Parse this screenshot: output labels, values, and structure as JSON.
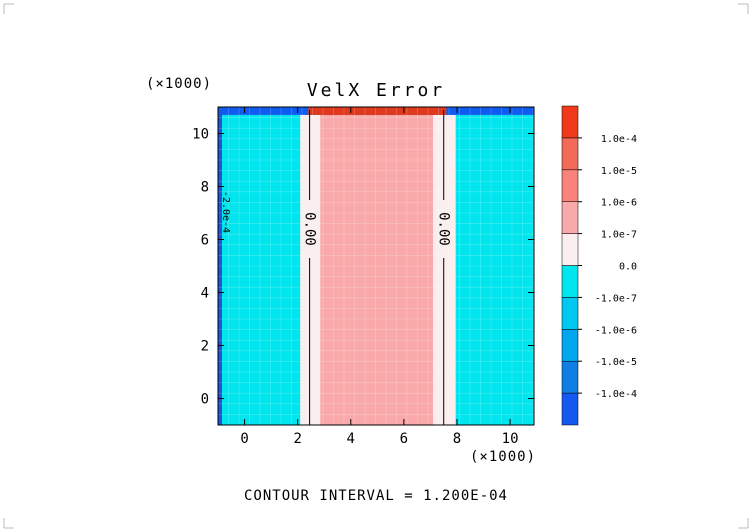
{
  "chart_data": {
    "type": "heatmap",
    "title": "VelX Error",
    "x_scale_label": "(×1000)",
    "y_scale_label": "(×1000)",
    "xlim": [
      -1.0,
      10.9
    ],
    "ylim": [
      -1.0,
      11.0
    ],
    "x_ticks": [
      0,
      2,
      4,
      6,
      8,
      10
    ],
    "y_ticks": [
      0,
      2,
      4,
      6,
      8,
      10
    ],
    "x_tick_labels": [
      "0",
      "2",
      "4",
      "6",
      "8",
      "10"
    ],
    "y_tick_labels": [
      "0",
      "2",
      "4",
      "6",
      "8",
      "10"
    ],
    "grid": true,
    "regions": [
      {
        "x0": -1.0,
        "x1": 2.1,
        "y0": -1.0,
        "y1": 10.7,
        "color": "#00e5ee",
        "level": "-1.0e-7"
      },
      {
        "x0": 2.1,
        "x1": 2.85,
        "y0": -1.0,
        "y1": 10.7,
        "color": "#fbeeee",
        "level": "0.0"
      },
      {
        "x0": 2.85,
        "x1": 7.1,
        "y0": -1.0,
        "y1": 10.7,
        "color": "#f9a9aa",
        "level": "1.0e-7"
      },
      {
        "x0": 7.1,
        "x1": 7.95,
        "y0": -1.0,
        "y1": 10.7,
        "color": "#fbeeee",
        "level": "0.0"
      },
      {
        "x0": 7.95,
        "x1": 10.9,
        "y0": -1.0,
        "y1": 10.7,
        "color": "#00e5ee",
        "level": "-1.0e-7"
      }
    ],
    "top_band": {
      "y0": 10.7,
      "y1": 11.0,
      "negative_color": "#0f5cf0",
      "positive_color": "#e03a1e"
    },
    "left_band": {
      "x0": -1.0,
      "x1": -0.85,
      "color": "#1e56d8"
    },
    "contour_lines": [
      {
        "x": 2.45,
        "label": "0.00"
      },
      {
        "x": 7.5,
        "label": "0.00"
      }
    ],
    "side_label": "-2.0e-4",
    "colorbar": {
      "colors": [
        "#1659f2",
        "#0f7fe6",
        "#00a6ee",
        "#00c8ee",
        "#00e5ee",
        "#fbeeee",
        "#f9a9aa",
        "#f9837b",
        "#f36b58",
        "#f03a1a"
      ],
      "labels": [
        "-1.0e-4",
        "-1.0e-5",
        "-1.0e-6",
        "-1.0e-7",
        "0.0",
        "1.0e-7",
        "1.0e-6",
        "1.0e-5",
        "1.0e-4"
      ]
    },
    "footer": "CONTOUR INTERVAL = 1.200E-04"
  }
}
